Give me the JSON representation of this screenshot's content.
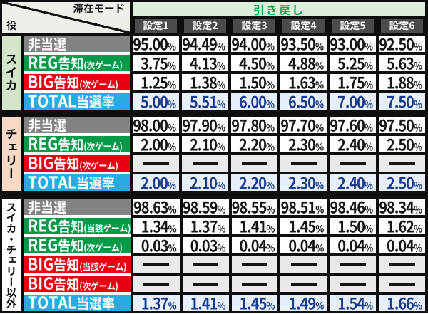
{
  "chart_data": {
    "type": "table",
    "corner": {
      "top": "滞在モード",
      "bottom": "役"
    },
    "mode_header": "引き戻し",
    "column_headers": [
      "設定1",
      "設定2",
      "設定3",
      "設定4",
      "設定5",
      "設定6"
    ],
    "unit": "%",
    "dash": "—",
    "groups": [
      {
        "name": "スイカ",
        "tint": "#d5e5cc",
        "rows": [
          {
            "label": "非当選",
            "sub": "",
            "type": "gray",
            "values": [
              "95.00",
              "94.49",
              "94.00",
              "93.50",
              "93.00",
              "92.50"
            ]
          },
          {
            "label": "REG告知",
            "sub": "(次ゲーム)",
            "type": "green",
            "values": [
              "3.75",
              "4.13",
              "4.50",
              "4.88",
              "5.25",
              "5.63"
            ]
          },
          {
            "label": "BIG告知",
            "sub": "(次ゲーム)",
            "type": "red",
            "values": [
              "1.25",
              "1.38",
              "1.50",
              "1.63",
              "1.75",
              "1.88"
            ]
          },
          {
            "label": "TOTAL当選率",
            "sub": "",
            "type": "total",
            "values": [
              "5.00",
              "5.51",
              "6.00",
              "6.50",
              "7.00",
              "7.50"
            ]
          }
        ]
      },
      {
        "name": "チェリー",
        "tint": "#f7dac5",
        "rows": [
          {
            "label": "非当選",
            "sub": "",
            "type": "gray",
            "values": [
              "98.00",
              "97.90",
              "97.80",
              "97.70",
              "97.60",
              "97.50"
            ]
          },
          {
            "label": "REG告知",
            "sub": "(次ゲーム)",
            "type": "green",
            "values": [
              "2.00",
              "2.10",
              "2.20",
              "2.30",
              "2.40",
              "2.50"
            ]
          },
          {
            "label": "BIG告知",
            "sub": "(次ゲーム)",
            "type": "red",
            "values": [
              "—",
              "—",
              "—",
              "—",
              "—",
              "—"
            ]
          },
          {
            "label": "TOTAL当選率",
            "sub": "",
            "type": "total",
            "values": [
              "2.00",
              "2.10",
              "2.20",
              "2.30",
              "2.40",
              "2.50"
            ]
          }
        ]
      },
      {
        "name": "スイカ・チェリー以外",
        "tint": "#ffffff",
        "rows": [
          {
            "label": "非当選",
            "sub": "",
            "type": "gray",
            "values": [
              "98.63",
              "98.59",
              "98.55",
              "98.51",
              "98.46",
              "98.34"
            ]
          },
          {
            "label": "REG告知",
            "sub": "(当該ゲーム)",
            "type": "green",
            "values": [
              "1.34",
              "1.37",
              "1.41",
              "1.45",
              "1.50",
              "1.62"
            ]
          },
          {
            "label": "REG告知",
            "sub": "(次ゲーム)",
            "type": "green",
            "values": [
              "0.03",
              "0.03",
              "0.04",
              "0.04",
              "0.04",
              "0.04"
            ]
          },
          {
            "label": "BIG告知",
            "sub": "(当該ゲーム)",
            "type": "red",
            "values": [
              "—",
              "—",
              "—",
              "—",
              "—",
              "—"
            ]
          },
          {
            "label": "BIG告知",
            "sub": "(次ゲーム)",
            "type": "red",
            "values": [
              "—",
              "—",
              "—",
              "—",
              "—",
              "—"
            ]
          },
          {
            "label": "TOTAL当選率",
            "sub": "",
            "type": "total",
            "values": [
              "1.37",
              "1.41",
              "1.45",
              "1.49",
              "1.54",
              "1.66"
            ]
          }
        ]
      }
    ]
  },
  "colors": {
    "frame_black": "#0e0e0e",
    "corner_bg": "#edefe8",
    "mode_header_bg": "#dcefdb",
    "mode_header_text": "#12a14f",
    "setting_header_bg": "#4b4b4b",
    "row_gray": "#838383",
    "row_green": "#029a48",
    "row_red": "#e60012",
    "row_total_blue": "#29abe2",
    "total_cell_bg": "#e7f0fa",
    "total_cell_text": "#1c3a90",
    "dash_cell_bg": "#e9e9e9",
    "group_tint_suika": "#d5e5cc",
    "group_tint_cherry": "#f7dac5"
  }
}
